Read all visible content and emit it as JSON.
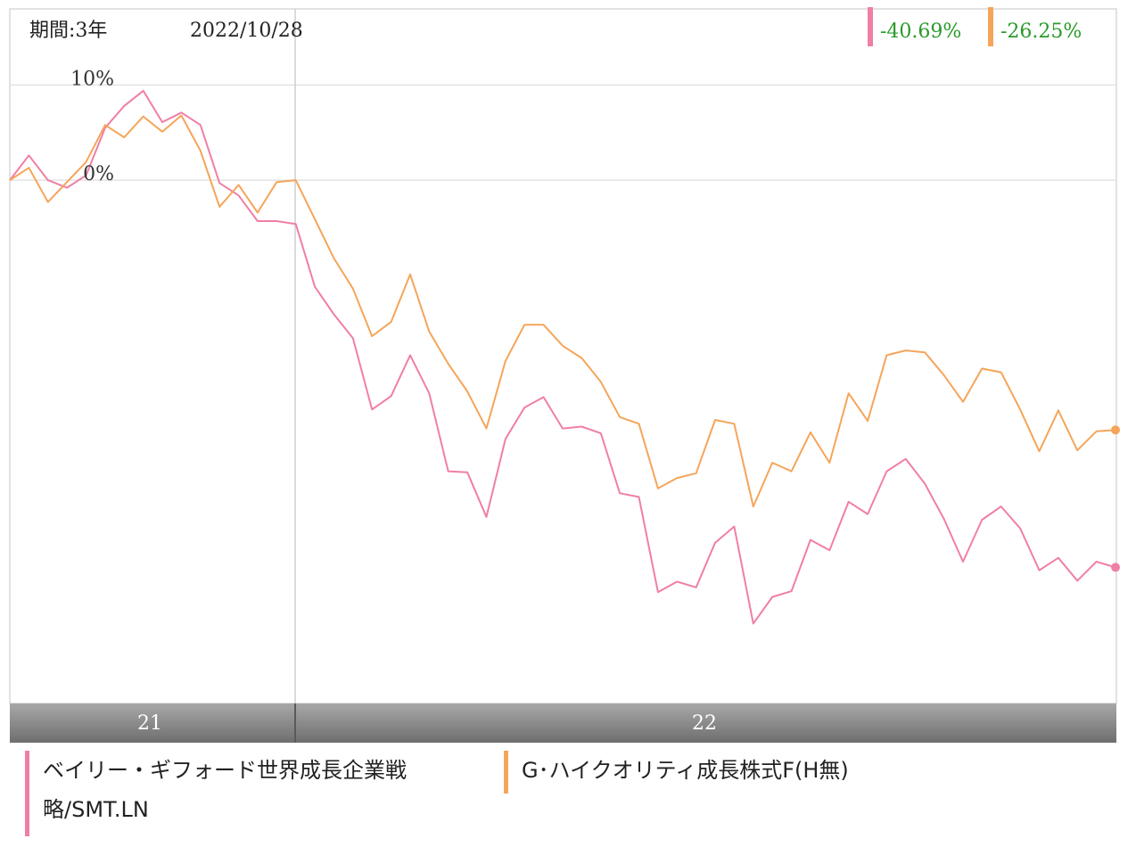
{
  "header": {
    "period_label": "期間:3年",
    "cursor_date": "2022/10/28"
  },
  "colors": {
    "series1": "#f07fa5",
    "series2": "#f5a55a",
    "value_text": "#2a9a2a",
    "axis_bar": "#8a8a8a"
  },
  "legend": {
    "series1_name": "ベイリー・ギフォード世界成長企業戦略/SMT.LN",
    "series1_line1": "ベイリー・ギフォード世界成長企業戦",
    "series1_line2": "略/SMT.LN",
    "series2_name": "G･ハイクオリティ成長株式F(H無)"
  },
  "chart_data": {
    "type": "line",
    "x_tick_labels": [
      "21",
      "22"
    ],
    "y_tick_labels": [
      "10%",
      "0%"
    ],
    "y_ticks": [
      10,
      0
    ],
    "ylim": [
      -55,
      18
    ],
    "grid": true,
    "legend_position": "bottom",
    "series": [
      {
        "name": "ベイリー・ギフォード世界成長企業戦略/SMT.LN",
        "end_value_label": "-40.69%",
        "values": [
          0,
          2.6,
          0,
          -0.8,
          0.5,
          5.5,
          7.8,
          9.4,
          6.1,
          7.1,
          5.8,
          -0.3,
          -1.6,
          -4.3,
          -4.3,
          -4.6,
          -11.2,
          -14.1,
          -16.6,
          -24.1,
          -22.7,
          -18.4,
          -22.4,
          -30.6,
          -30.7,
          -35.4,
          -27.2,
          -23.9,
          -22.8,
          -26.1,
          -25.9,
          -26.6,
          -32.9,
          -33.3,
          -43.3,
          -42.2,
          -42.8,
          -38.1,
          -36.4,
          -46.6,
          -43.8,
          -43.2,
          -37.8,
          -38.9,
          -33.8,
          -35.1,
          -30.6,
          -29.3,
          -31.9,
          -35.6,
          -40.1,
          -35.7,
          -34.3,
          -36.6,
          -41,
          -39.7,
          -42.1,
          -40.1,
          -40.69
        ]
      },
      {
        "name": "G･ハイクオリティ成長株式F(H無)",
        "end_value_label": "-26.25%",
        "values": [
          0,
          1.3,
          -2.3,
          -0.2,
          1.9,
          5.8,
          4.5,
          6.7,
          5.1,
          6.8,
          3.1,
          -2.8,
          -0.5,
          -3.4,
          -0.2,
          0,
          -4.1,
          -8.2,
          -11.4,
          -16.4,
          -14.9,
          -9.9,
          -15.9,
          -19.3,
          -22.2,
          -26.1,
          -19,
          -15.2,
          -15.2,
          -17.4,
          -18.7,
          -21.2,
          -24.9,
          -25.6,
          -32.4,
          -31.3,
          -30.8,
          -25.2,
          -25.6,
          -34.3,
          -29.7,
          -30.6,
          -26.5,
          -29.7,
          -22.4,
          -25.3,
          -18.4,
          -17.9,
          -18.1,
          -20.5,
          -23.3,
          -19.8,
          -20.2,
          -24.1,
          -28.5,
          -24.2,
          -28.4,
          -26.4,
          -26.25
        ]
      }
    ]
  }
}
